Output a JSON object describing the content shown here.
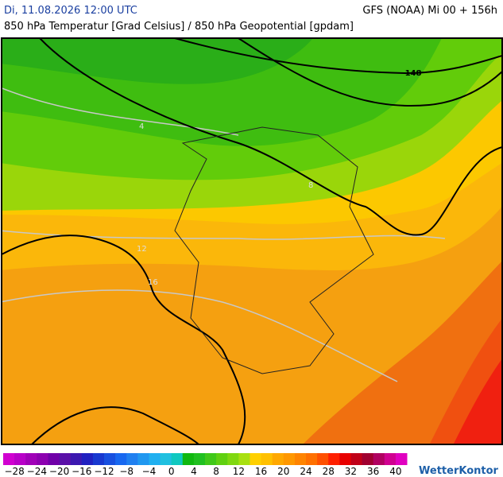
{
  "header": {
    "datetime": "Di, 11.08.2026 12:00 UTC",
    "model": "GFS (NOAA) Mi 00 + 156h",
    "subtitle": "850 hPa Temperatur [Grad Celsius] / 850 hPa Geopotential [gpdam]"
  },
  "map": {
    "contour_labels": [
      "148",
      "4",
      "8",
      "12",
      "16"
    ]
  },
  "legend": {
    "ticks": [
      "−28",
      "−24",
      "−20",
      "−16",
      "−12",
      "−8",
      "−4",
      "0",
      "4",
      "8",
      "12",
      "16",
      "20",
      "24",
      "28",
      "32",
      "36",
      "40"
    ]
  },
  "brand": "WetterKontor"
}
